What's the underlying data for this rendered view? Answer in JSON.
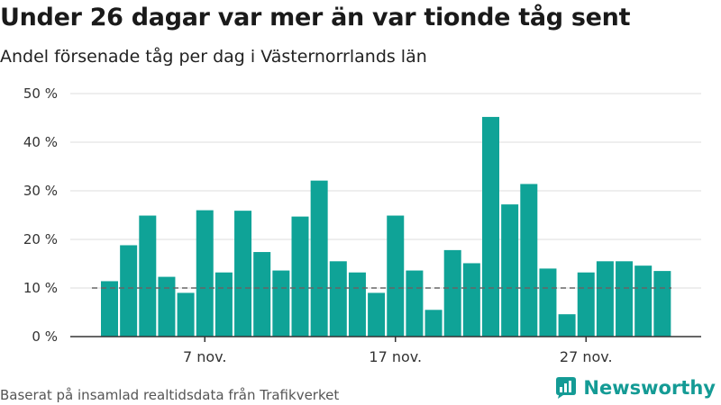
{
  "title": "Under 26 dagar var mer än var tionde tåg sent",
  "subtitle": "Andel försenade tåg per dag i Västernorrlands län",
  "footer": "Baserat på insamlad realtidsdata från Trafikverket",
  "logo_text": "Newsworthy",
  "colors": {
    "bar": "#0fa397",
    "reference": "#666666",
    "grid": "#dddddd",
    "logo": "#149b95"
  },
  "chart_data": {
    "type": "bar",
    "x": [
      "2 nov.",
      "3 nov.",
      "4 nov.",
      "5 nov.",
      "6 nov.",
      "7 nov.",
      "8 nov.",
      "9 nov.",
      "10 nov.",
      "11 nov.",
      "12 nov.",
      "13 nov.",
      "14 nov.",
      "15 nov.",
      "16 nov.",
      "17 nov.",
      "18 nov.",
      "19 nov.",
      "20 nov.",
      "21 nov.",
      "22 nov.",
      "23 nov.",
      "24 nov.",
      "25 nov.",
      "26 nov.",
      "27 nov.",
      "28 nov.",
      "29 nov.",
      "30 nov.",
      "1 dec."
    ],
    "values": [
      11.4,
      18.8,
      24.9,
      12.3,
      9.0,
      26.0,
      13.2,
      25.9,
      17.4,
      13.6,
      24.7,
      32.1,
      15.5,
      13.2,
      9.0,
      24.9,
      13.6,
      5.5,
      17.8,
      15.1,
      45.2,
      27.2,
      31.4,
      14.0,
      4.6,
      13.2,
      15.5,
      15.5,
      14.6,
      13.5
    ],
    "reference_line": 10,
    "ylim": [
      0,
      50
    ],
    "yticks": [
      0,
      10,
      20,
      30,
      40,
      50
    ],
    "ytick_labels": [
      "0 %",
      "10 %",
      "20 %",
      "30 %",
      "40 %",
      "50 %"
    ],
    "xtick_labels": [
      "7 nov.",
      "17 nov.",
      "27 nov."
    ],
    "xlabel": "",
    "ylabel": "",
    "grid": true
  }
}
